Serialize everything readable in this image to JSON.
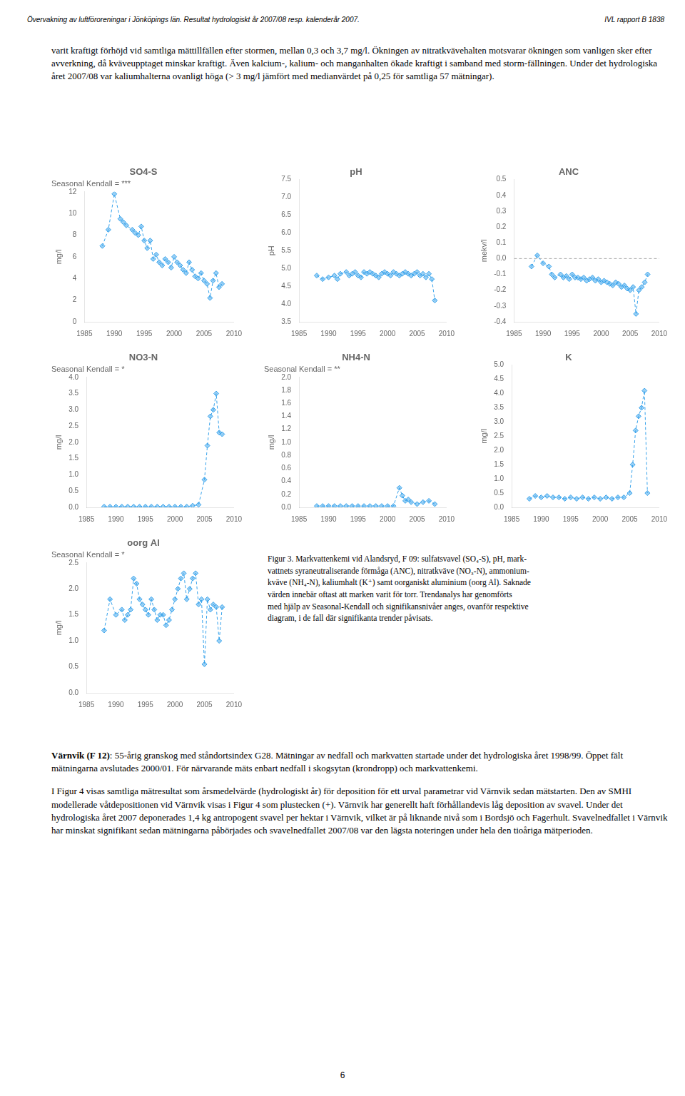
{
  "annotations": [
    "Övervakning av luftföroreningar i Jönköpings län. Resultat hydrologiskt år 2007/08 resp. kalenderår 2007.",
    "IVL rapport B 1838",
    "varit kraftigt förhöjd vid samtliga mättillfällen efter stormen, mellan 0,3 och 3,7 mg/l. Ökningen av nitratkvävehalten motsvarar ökningen som vanligen sker efter avverkning, då kväveupptaget minskar kraftigt. Även kalcium-, kalium- och manganhalten ökade kraftigt i samband med storm-fällningen. Under det hydrologiska året 2007/08 var kaliumhalterna ovanligt höga (> 3 mg/l jämfört med medianvärdet på 0,25 för samtliga 57 mätningar).",
    "Figur 3. Markvattenkemi vid Alandsryd, F 09: sulfatsvavel (SO₄-S), pH, mark-\nvattnets syraneutraliserande förmåga (ANC), nitratkväve (NO₃-N), ammonium-\nkväve (NH₄-N), kaliumhalt (K⁺) samt oorganiskt aluminium (oorg Al). Saknade\nvärden innebär oftast att marken varit för torr. Trendanalys har genomförts\nmed hjälp av Seasonal-Kendall och signifikansnivåer anges, ovanför respektive\ndiagram, i de fall där signifikanta trender påvisats.",
    "Värnvik (F 12)",
    ": 55-årig granskog med ståndortsindex G28. Mätningar av nedfall och markvatten startade under det hydrologiska året 1998/99. Öppet fält mätningarna avslutades 2000/01. För närvarande mäts enbart nedfall i skogsytan (krondropp) och markvattenkemi.",
    "I Figur 4 visas samtliga mätresultat som årsmedelvärde (hydrologiskt år) för deposition för ett urval parametrar vid Värnvik sedan mätstarten. Den av SMHI modellerade våtdepositionen vid Värnvik visas i Figur 4 som plustecken (+). Värnvik har generellt haft förhållandevis låg deposition av svavel. Under det hydrologiska året 2007 deponerades 1,4 kg antropogent svavel per hektar i Värnvik, vilket är på liknande nivå som i Bordsjö och Fagerhult. Svavelnedfallet i Värnvik har minskat signifikant sedan mätningarna påbörjades och svavelnedfallet 2007/08 var den lägsta noteringen under hela den tioåriga mätperioden.",
    "6"
  ],
  "chart_data": [
    {
      "type": "line",
      "title": "SO4-S",
      "subtitle": "Seasonal Kendall = ***",
      "y_label": "mg/l",
      "x": [
        1988,
        1989,
        1990,
        1991,
        1991.5,
        1992,
        1993,
        1993.5,
        1994,
        1994.5,
        1995,
        1995.5,
        1996,
        1996.5,
        1997,
        1997.5,
        1998,
        1998.5,
        1999,
        1999.5,
        2000,
        2000.5,
        2001,
        2001.5,
        2002,
        2002.5,
        2003,
        2003.5,
        2004,
        2004.5,
        2005,
        2005.5,
        2006,
        2006.5,
        2007,
        2007.5,
        2008
      ],
      "values": [
        7.0,
        8.5,
        11.8,
        9.5,
        9.2,
        8.9,
        8.5,
        8.2,
        8.0,
        8.8,
        7.5,
        6.8,
        7.5,
        5.8,
        6.2,
        5.5,
        5.2,
        5.8,
        5.5,
        5.0,
        6.0,
        5.5,
        5.2,
        4.8,
        4.5,
        5.5,
        4.8,
        4.2,
        4.0,
        4.5,
        3.8,
        3.5,
        2.2,
        3.8,
        4.5,
        3.2,
        3.5
      ],
      "xlim": [
        1985,
        2010
      ],
      "xticks": [
        1985,
        1990,
        1995,
        2000,
        2005,
        2010
      ],
      "ylim": [
        0,
        12
      ],
      "yticks": [
        0,
        2,
        4,
        6,
        8,
        10,
        12
      ],
      "grid": false,
      "marker": "diamond",
      "line_style": "dashed"
    },
    {
      "type": "line",
      "title": "pH",
      "y_label": "pH",
      "x": [
        1988,
        1989,
        1990,
        1991,
        1991.5,
        1992,
        1993,
        1993.5,
        1994,
        1994.5,
        1995,
        1995.5,
        1996,
        1996.5,
        1997,
        1997.5,
        1998,
        1998.5,
        1999,
        1999.5,
        2000,
        2000.5,
        2001,
        2001.5,
        2002,
        2002.5,
        2003,
        2003.5,
        2004,
        2004.5,
        2005,
        2005.5,
        2006,
        2006.5,
        2007,
        2007.5,
        2008
      ],
      "values": [
        4.8,
        4.7,
        4.75,
        4.8,
        4.7,
        4.85,
        4.9,
        4.8,
        4.85,
        4.9,
        4.8,
        4.75,
        4.9,
        4.85,
        4.9,
        4.85,
        4.8,
        4.75,
        4.85,
        4.9,
        4.85,
        4.8,
        4.9,
        4.85,
        4.8,
        4.85,
        4.9,
        4.85,
        4.8,
        4.85,
        4.9,
        4.8,
        4.85,
        4.75,
        4.85,
        4.7,
        4.1
      ],
      "xlim": [
        1985,
        2010
      ],
      "xticks": [
        1985,
        1990,
        1995,
        2000,
        2005,
        2010
      ],
      "ylim": [
        3.5,
        7.5
      ],
      "yticks": [
        3.5,
        {
          "value": 4.0,
          "label": "4.0"
        },
        4.5,
        {
          "value": 5.0,
          "label": "5.0"
        },
        5.5,
        {
          "value": 6.0,
          "label": "6.0"
        },
        6.5,
        {
          "value": 7.0,
          "label": "7.0"
        },
        7.5
      ],
      "grid": false,
      "marker": "diamond",
      "line_style": "dashed"
    },
    {
      "type": "line",
      "title": "ANC",
      "y_label": "mekv/l",
      "hline": 0.0,
      "x": [
        1988,
        1989,
        1990,
        1991,
        1991.5,
        1992,
        1993,
        1993.5,
        1994,
        1994.5,
        1995,
        1995.5,
        1996,
        1996.5,
        1997,
        1997.5,
        1998,
        1998.5,
        1999,
        1999.5,
        2000,
        2000.5,
        2001,
        2001.5,
        2002,
        2002.5,
        2003,
        2003.5,
        2004,
        2004.5,
        2005,
        2005.5,
        2006,
        2006.5,
        2007,
        2007.5,
        2008
      ],
      "values": [
        -0.05,
        0.02,
        -0.03,
        -0.05,
        -0.1,
        -0.12,
        -0.1,
        -0.12,
        -0.11,
        -0.13,
        -0.1,
        -0.12,
        -0.12,
        -0.13,
        -0.12,
        -0.14,
        -0.13,
        -0.12,
        -0.14,
        -0.13,
        -0.15,
        -0.14,
        -0.15,
        -0.16,
        -0.17,
        -0.15,
        -0.16,
        -0.18,
        -0.17,
        -0.19,
        -0.2,
        -0.18,
        -0.35,
        -0.2,
        -0.18,
        -0.15,
        -0.1
      ],
      "xlim": [
        1985,
        2010
      ],
      "xticks": [
        1985,
        1990,
        1995,
        2000,
        2005,
        2010
      ],
      "ylim": [
        -0.4,
        0.5
      ],
      "yticks": [
        -0.4,
        -0.3,
        -0.2,
        -0.1,
        {
          "value": 0.0,
          "label": "0.0"
        },
        0.1,
        0.2,
        0.3,
        0.4,
        0.5
      ],
      "grid": false,
      "marker": "diamond",
      "line_style": "dashed"
    },
    {
      "type": "line",
      "title": "NO3-N",
      "subtitle": "Seasonal Kendall = *",
      "y_label": "mg/l",
      "x": [
        1988,
        1989,
        1990,
        1991,
        1992,
        1993,
        1994,
        1995,
        1996,
        1997,
        1998,
        1999,
        2000,
        2001,
        2002,
        2003,
        2004,
        2005,
        2005.5,
        2006,
        2006.5,
        2007,
        2007.5,
        2008
      ],
      "values": [
        0.02,
        0.02,
        0.02,
        0.02,
        0.02,
        0.02,
        0.02,
        0.02,
        0.02,
        0.02,
        0.02,
        0.02,
        0.02,
        0.02,
        0.02,
        0.05,
        0.08,
        0.85,
        1.9,
        2.8,
        3.0,
        3.5,
        2.3,
        2.25
      ],
      "xlim": [
        1985,
        2010
      ],
      "xticks": [
        1985,
        1990,
        1995,
        2000,
        2005,
        2010
      ],
      "ylim": [
        0.0,
        4.0
      ],
      "yticks": [
        {
          "value": 0.0,
          "label": "0.0"
        },
        0.5,
        {
          "value": 1.0,
          "label": "1.0"
        },
        1.5,
        {
          "value": 2.0,
          "label": "2.0"
        },
        2.5,
        {
          "value": 3.0,
          "label": "3.0"
        },
        3.5,
        {
          "value": 4.0,
          "label": "4.0"
        }
      ],
      "grid": false,
      "marker": "diamond",
      "line_style": "dashed"
    },
    {
      "type": "line",
      "title": "NH4-N",
      "subtitle": "Seasonal Kendall = **",
      "y_label": "mg/l",
      "x": [
        1988,
        1989,
        1990,
        1991,
        1992,
        1993,
        1994,
        1995,
        1996,
        1997,
        1998,
        1999,
        2000,
        2001,
        2002,
        2002.5,
        2003,
        2003.5,
        2004,
        2005,
        2006,
        2007,
        2008
      ],
      "values": [
        0.02,
        0.02,
        0.02,
        0.02,
        0.02,
        0.02,
        0.02,
        0.02,
        0.02,
        0.02,
        0.02,
        0.02,
        0.02,
        0.02,
        0.3,
        0.18,
        0.1,
        0.12,
        0.08,
        0.05,
        0.08,
        0.1,
        0.05
      ],
      "xlim": [
        1985,
        2010
      ],
      "xticks": [
        1985,
        1990,
        1995,
        2000,
        2005,
        2010
      ],
      "ylim": [
        0.0,
        2.0
      ],
      "yticks": [
        {
          "value": 0.0,
          "label": "0.0"
        },
        0.2,
        0.4,
        0.6,
        0.8,
        {
          "value": 1.0,
          "label": "1.0"
        },
        1.2,
        1.4,
        1.6,
        1.8,
        {
          "value": 2.0,
          "label": "2.0"
        }
      ],
      "grid": false,
      "marker": "diamond",
      "line_style": "dashed"
    },
    {
      "type": "line",
      "title": "K",
      "y_label": "mg/l",
      "x": [
        1988,
        1989,
        1990,
        1991,
        1992,
        1993,
        1994,
        1995,
        1996,
        1997,
        1998,
        1999,
        2000,
        2001,
        2002,
        2003,
        2004,
        2005,
        2005.5,
        2006,
        2006.5,
        2007,
        2007.5,
        2008
      ],
      "values": [
        0.3,
        0.4,
        0.35,
        0.4,
        0.35,
        0.35,
        0.3,
        0.35,
        0.3,
        0.35,
        0.3,
        0.35,
        0.3,
        0.35,
        0.3,
        0.35,
        0.35,
        0.5,
        1.5,
        2.7,
        3.2,
        3.5,
        4.1,
        0.5
      ],
      "xlim": [
        1985,
        2010
      ],
      "xticks": [
        1985,
        1990,
        1995,
        2000,
        2005,
        2010
      ],
      "ylim": [
        0.0,
        5.0
      ],
      "yticks": [
        {
          "value": 0.0,
          "label": "0.0"
        },
        0.5,
        {
          "value": 1.0,
          "label": "1.0"
        },
        1.5,
        {
          "value": 2.0,
          "label": "2.0"
        },
        2.5,
        {
          "value": 3.0,
          "label": "3.0"
        },
        3.5,
        {
          "value": 4.0,
          "label": "4.0"
        },
        4.5,
        {
          "value": 5.0,
          "label": "5.0"
        }
      ],
      "grid": false,
      "marker": "diamond",
      "line_style": "dashed"
    },
    {
      "type": "line",
      "title": "oorg Al",
      "subtitle": "Seasonal Kendall = *",
      "y_label": "mg/l",
      "x": [
        1988,
        1989,
        1990,
        1991,
        1991.5,
        1992,
        1992.5,
        1993,
        1993.5,
        1994,
        1994.5,
        1995,
        1995.5,
        1996,
        1996.5,
        1997,
        1997.5,
        1998,
        1998.5,
        1999,
        1999.5,
        2000,
        2000.5,
        2001,
        2001.5,
        2002,
        2002.5,
        2003,
        2003.5,
        2004,
        2004.5,
        2005,
        2005.5,
        2006,
        2006.5,
        2007,
        2007.5,
        2008
      ],
      "values": [
        1.2,
        1.8,
        1.5,
        1.6,
        1.4,
        1.5,
        1.6,
        2.2,
        2.1,
        1.8,
        1.7,
        1.6,
        1.5,
        1.8,
        1.6,
        1.4,
        1.5,
        1.5,
        1.3,
        1.4,
        1.6,
        1.8,
        2.0,
        2.2,
        2.3,
        1.8,
        2.0,
        2.2,
        2.3,
        1.7,
        1.8,
        0.55,
        1.8,
        1.6,
        1.7,
        1.65,
        1.0,
        1.65
      ],
      "xlim": [
        1985,
        2010
      ],
      "xticks": [
        1985,
        1990,
        1995,
        2000,
        2005,
        2010
      ],
      "ylim": [
        0.0,
        2.5
      ],
      "yticks": [
        {
          "value": 0.0,
          "label": "0.0"
        },
        0.5,
        {
          "value": 1.0,
          "label": "1.0"
        },
        1.5,
        {
          "value": 2.0,
          "label": "2.0"
        },
        2.5
      ],
      "grid": false,
      "marker": "diamond",
      "line_style": "dashed"
    }
  ]
}
